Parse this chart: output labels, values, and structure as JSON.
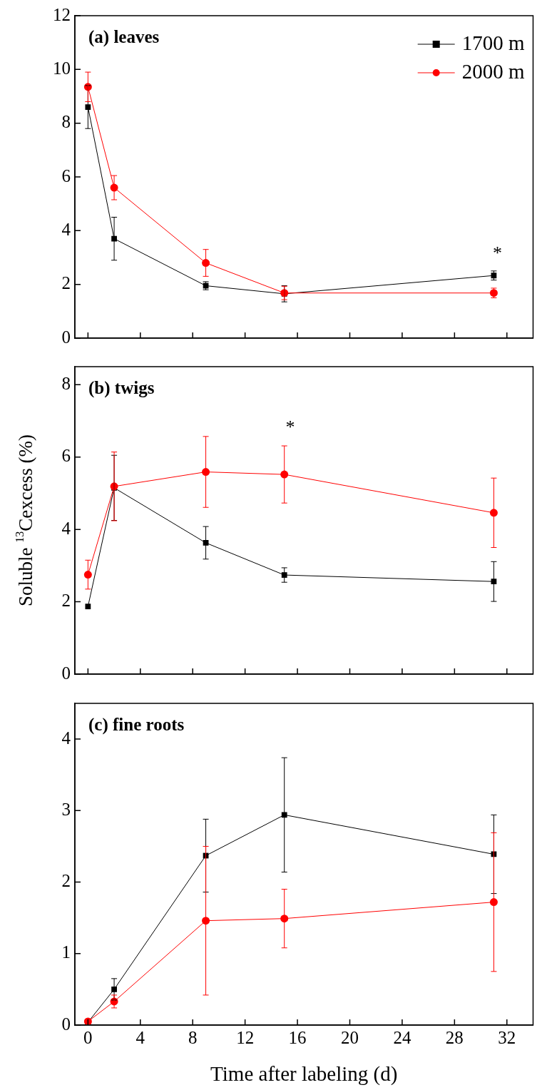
{
  "chart_data": [
    {
      "type": "line",
      "title": "(a) leaves",
      "x": [
        0,
        2,
        9,
        15,
        31
      ],
      "xlim": [
        -1,
        34
      ],
      "xticks": [
        0,
        4,
        8,
        12,
        16,
        20,
        24,
        28,
        32
      ],
      "ylim": [
        0,
        12
      ],
      "yticks": [
        0,
        2,
        4,
        6,
        8,
        10,
        12
      ],
      "tick_labels": "y",
      "grid": false,
      "legend": "top right",
      "series": [
        {
          "name": "1700 m",
          "color": "#000000",
          "marker": "square",
          "values": [
            8.6,
            3.7,
            1.95,
            1.65,
            2.33
          ],
          "errors": [
            0.8,
            0.8,
            0.15,
            0.3,
            0.17
          ]
        },
        {
          "name": "2000 m",
          "color": "#ff0000",
          "marker": "circle",
          "values": [
            9.35,
            5.6,
            2.8,
            1.68,
            1.68
          ],
          "errors": [
            0.55,
            0.45,
            0.5,
            0.25,
            0.18
          ]
        }
      ],
      "annotations": [
        "*"
      ]
    },
    {
      "type": "line",
      "title": "(b) twigs",
      "ylabel": "Soluble $^{13}$Cexcess (%)",
      "x": [
        0,
        2,
        9,
        15,
        31
      ],
      "xlim": [
        -1,
        34
      ],
      "xticks": [
        0,
        4,
        8,
        12,
        16,
        20,
        24,
        28,
        32
      ],
      "ylim": [
        0,
        8.5
      ],
      "yticks": [
        0,
        2,
        4,
        6,
        8
      ],
      "tick_labels": "y",
      "grid": false,
      "series": [
        {
          "color": "#000000",
          "marker": "square",
          "values": [
            1.87,
            5.15,
            3.63,
            2.74,
            2.56
          ],
          "errors": [
            null,
            0.9,
            0.45,
            0.2,
            0.55
          ]
        },
        {
          "color": "#ff0000",
          "marker": "circle",
          "values": [
            2.75,
            5.19,
            5.59,
            5.52,
            4.46
          ],
          "errors": [
            0.4,
            0.95,
            0.98,
            0.79,
            0.96
          ]
        }
      ],
      "annotations": [
        "*"
      ]
    },
    {
      "type": "line",
      "title": "(c) fine roots",
      "xlabel": "Time after labeling (d)",
      "x": [
        0,
        2,
        9,
        15,
        31
      ],
      "xlim": [
        -1,
        34
      ],
      "xticks": [
        0,
        4,
        8,
        12,
        16,
        20,
        24,
        28,
        32
      ],
      "ylim": [
        0,
        4.5
      ],
      "yticks": [
        0,
        1,
        2,
        3,
        4
      ],
      "grid": false,
      "series": [
        {
          "color": "#000000",
          "marker": "square",
          "values": [
            0.04,
            0.5,
            2.37,
            2.94,
            2.39
          ],
          "errors": [
            null,
            0.15,
            0.51,
            0.8,
            0.55
          ]
        },
        {
          "color": "#ff0000",
          "marker": "circle",
          "values": [
            0.05,
            0.33,
            1.46,
            1.49,
            1.72
          ],
          "errors": [
            null,
            0.09,
            1.04,
            0.41,
            0.97
          ]
        }
      ]
    }
  ]
}
